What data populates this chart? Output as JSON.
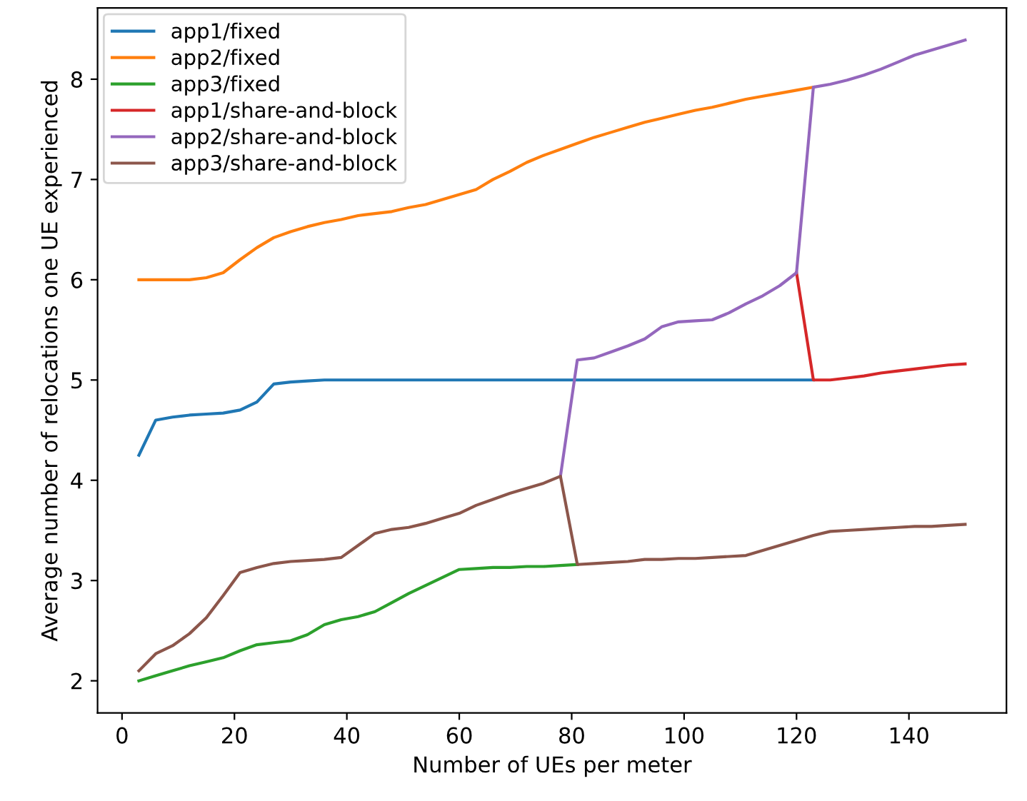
{
  "chart_data": {
    "type": "line",
    "xlabel": "Number of UEs per meter",
    "ylabel": "Average number of relocations one UE experienced",
    "xlim": [
      -4.35,
      157.35
    ],
    "ylim": [
      1.68,
      8.71
    ],
    "xticks": [
      0,
      20,
      40,
      60,
      80,
      100,
      120,
      140
    ],
    "yticks": [
      2,
      3,
      4,
      5,
      6,
      7,
      8
    ],
    "grid": false,
    "legend": "top left",
    "line_style": "solid",
    "marker": "none",
    "series": [
      {
        "name": "app1/fixed",
        "color": "#1f77b4",
        "x": [
          3,
          6,
          9,
          12,
          15,
          18,
          21,
          24,
          27,
          30,
          33,
          36,
          39,
          42,
          45,
          48,
          51,
          54,
          57,
          60,
          63,
          66,
          69,
          72,
          75,
          78,
          81,
          84,
          87,
          90,
          93,
          96,
          99,
          102,
          105,
          108,
          111,
          114,
          117,
          120,
          123
        ],
        "values": [
          4.25,
          4.6,
          4.63,
          4.65,
          4.66,
          4.67,
          4.7,
          4.78,
          4.96,
          4.98,
          4.99,
          5.0,
          5.0,
          5.0,
          5.0,
          5.0,
          5.0,
          5.0,
          5.0,
          5.0,
          5.0,
          5.0,
          5.0,
          5.0,
          5.0,
          5.0,
          5.0,
          5.0,
          5.0,
          5.0,
          5.0,
          5.0,
          5.0,
          5.0,
          5.0,
          5.0,
          5.0,
          5.0,
          5.0,
          5.0,
          5.0
        ]
      },
      {
        "name": "app2/fixed",
        "color": "#ff7f0e",
        "x": [
          3,
          6,
          9,
          12,
          15,
          18,
          21,
          24,
          27,
          30,
          33,
          36,
          39,
          42,
          45,
          48,
          51,
          54,
          57,
          60,
          63,
          66,
          69,
          72,
          75,
          78,
          81,
          84,
          87,
          90,
          93,
          96,
          99,
          102,
          105,
          108,
          111,
          114,
          117,
          120,
          123
        ],
        "values": [
          6.0,
          6.0,
          6.0,
          6.0,
          6.02,
          6.07,
          6.2,
          6.32,
          6.42,
          6.48,
          6.53,
          6.57,
          6.6,
          6.64,
          6.66,
          6.68,
          6.72,
          6.75,
          6.8,
          6.85,
          6.9,
          7.0,
          7.08,
          7.17,
          7.24,
          7.3,
          7.36,
          7.42,
          7.47,
          7.52,
          7.57,
          7.61,
          7.65,
          7.69,
          7.72,
          7.76,
          7.8,
          7.83,
          7.86,
          7.89,
          7.92
        ]
      },
      {
        "name": "app3/fixed",
        "color": "#2ca02c",
        "x": [
          3,
          6,
          9,
          12,
          15,
          18,
          21,
          24,
          27,
          30,
          33,
          36,
          39,
          42,
          45,
          48,
          51,
          54,
          57,
          60,
          63,
          66,
          69,
          72,
          75,
          78,
          81
        ],
        "values": [
          2.0,
          2.05,
          2.1,
          2.15,
          2.19,
          2.23,
          2.3,
          2.36,
          2.38,
          2.4,
          2.46,
          2.56,
          2.61,
          2.64,
          2.69,
          2.78,
          2.87,
          2.95,
          3.03,
          3.11,
          3.12,
          3.13,
          3.13,
          3.14,
          3.14,
          3.15,
          3.16
        ]
      },
      {
        "name": "app1/share-and-block",
        "color": "#d62728",
        "x": [
          120,
          123,
          126,
          129,
          132,
          135,
          138,
          141,
          144,
          147,
          150
        ],
        "values": [
          6.07,
          5.0,
          5.0,
          5.02,
          5.04,
          5.07,
          5.09,
          5.11,
          5.13,
          5.15,
          5.16
        ]
      },
      {
        "name": "app2/share-and-block",
        "color": "#9467bd",
        "x": [
          78,
          81,
          84,
          87,
          90,
          93,
          96,
          99,
          102,
          105,
          108,
          111,
          114,
          117,
          120,
          123,
          126,
          129,
          132,
          135,
          138,
          141,
          144,
          147,
          150
        ],
        "values": [
          4.04,
          5.2,
          5.22,
          5.28,
          5.34,
          5.41,
          5.53,
          5.58,
          5.59,
          5.6,
          5.67,
          5.76,
          5.84,
          5.94,
          6.07,
          7.92,
          7.95,
          7.99,
          8.04,
          8.1,
          8.17,
          8.24,
          8.29,
          8.34,
          8.39
        ]
      },
      {
        "name": "app3/share-and-block",
        "color": "#8c564b",
        "x": [
          3,
          6,
          9,
          12,
          15,
          18,
          21,
          24,
          27,
          30,
          33,
          36,
          39,
          42,
          45,
          48,
          51,
          54,
          57,
          60,
          63,
          66,
          69,
          72,
          75,
          78,
          81,
          84,
          87,
          90,
          93,
          96,
          99,
          102,
          105,
          108,
          111,
          114,
          117,
          120,
          123,
          126,
          129,
          132,
          135,
          138,
          141,
          144,
          147,
          150
        ],
        "values": [
          2.1,
          2.27,
          2.35,
          2.47,
          2.63,
          2.85,
          3.08,
          3.13,
          3.17,
          3.19,
          3.2,
          3.21,
          3.23,
          3.35,
          3.47,
          3.51,
          3.53,
          3.57,
          3.62,
          3.67,
          3.75,
          3.81,
          3.87,
          3.92,
          3.97,
          4.04,
          3.16,
          3.17,
          3.18,
          3.19,
          3.21,
          3.21,
          3.22,
          3.22,
          3.23,
          3.24,
          3.25,
          3.3,
          3.35,
          3.4,
          3.45,
          3.49,
          3.5,
          3.51,
          3.52,
          3.53,
          3.54,
          3.54,
          3.55,
          3.56
        ]
      }
    ]
  }
}
